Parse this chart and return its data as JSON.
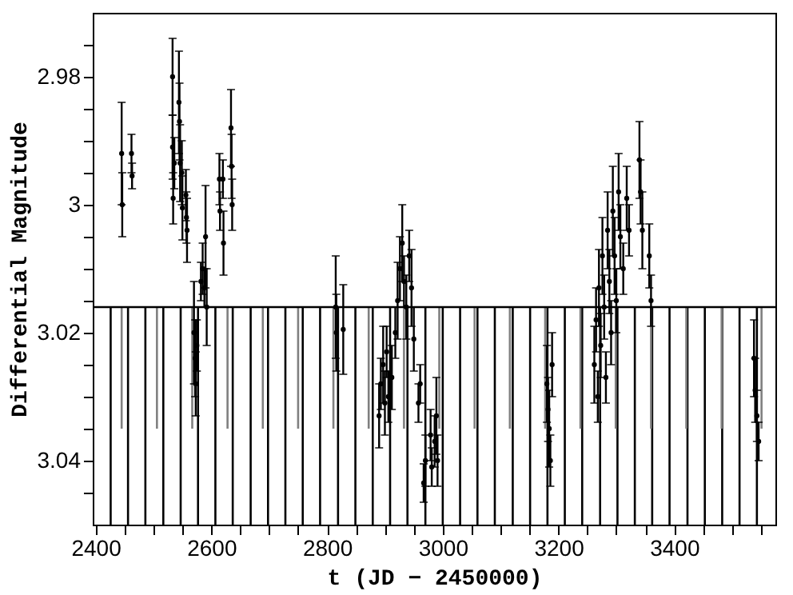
{
  "chart_data": {
    "type": "scatter",
    "xlabel": "t (JD − 2450000)",
    "ylabel": "Differential Magnitude",
    "xlim": [
      2395,
      3575
    ],
    "ylim": [
      3.05,
      2.97
    ],
    "xticks": [
      2400,
      {
        "value": 2450,
        "label": null
      },
      {
        "value": 2500,
        "label": null
      },
      {
        "value": 2550,
        "label": null
      },
      2600,
      {
        "value": 2650,
        "label": null
      },
      {
        "value": 2700,
        "label": null
      },
      {
        "value": 2750,
        "label": null
      },
      2800,
      {
        "value": 2850,
        "label": null
      },
      {
        "value": 2900,
        "label": null
      },
      {
        "value": 2950,
        "label": null
      },
      3000,
      {
        "value": 3050,
        "label": null
      },
      {
        "value": 3100,
        "label": null
      },
      {
        "value": 3150,
        "label": null
      },
      3200,
      {
        "value": 3250,
        "label": null
      },
      {
        "value": 3300,
        "label": null
      },
      {
        "value": 3350,
        "label": null
      },
      3400,
      {
        "value": 3450,
        "label": null
      },
      {
        "value": 3500,
        "label": null
      },
      {
        "value": 3550,
        "label": null
      }
    ],
    "yticks": [
      {
        "value": 2.975,
        "label": null
      },
      2.98,
      {
        "value": 2.985,
        "label": null
      },
      {
        "value": 2.99,
        "label": null
      },
      {
        "value": 2.995,
        "label": null
      },
      3,
      {
        "value": 3.005,
        "label": null
      },
      {
        "value": 3.01,
        "label": null
      },
      {
        "value": 3.015,
        "label": null
      },
      3.02,
      {
        "value": 3.025,
        "label": null
      },
      {
        "value": 3.03,
        "label": null
      },
      {
        "value": 3.035,
        "label": null
      },
      3.04,
      {
        "value": 3.045,
        "label": null
      }
    ],
    "grid": false,
    "marker": "circle",
    "ref_lines": [
      {
        "axis": "y",
        "value": 3.016,
        "color": "#000000"
      }
    ],
    "series": [
      {
        "type": "bar",
        "color": "#000000",
        "x": [
          2426,
          2456,
          2486,
          2517,
          2547,
          2577,
          2607,
          2637,
          2668,
          2698,
          2728,
          2758,
          2788,
          2819,
          2849,
          2879,
          2909,
          2939,
          2970,
          3000,
          3030,
          3060,
          3090,
          3121,
          3151,
          3181,
          3211,
          3241,
          3272,
          3302,
          3332,
          3362,
          3392,
          3423,
          3453,
          3483,
          3513,
          3543
        ],
        "base": [
          3.016,
          3.016,
          3.016,
          3.016,
          3.016,
          3.016,
          3.016,
          3.016,
          3.016,
          3.016,
          3.016,
          3.016,
          3.016,
          3.016,
          3.016,
          3.016,
          3.016,
          3.016,
          3.016,
          3.016,
          3.016,
          3.016,
          3.016,
          3.016,
          3.016,
          3.016,
          3.016,
          3.016,
          3.016,
          3.016,
          3.016,
          3.016,
          3.016,
          3.016,
          3.016,
          3.016,
          3.016,
          3.016
        ],
        "values": [
          0.034,
          0.034,
          0.034,
          0.034,
          0.034,
          0.034,
          0.034,
          0.034,
          0.034,
          0.034,
          0.034,
          0.034,
          0.034,
          0.034,
          0.034,
          0.034,
          0.034,
          0.034,
          0.034,
          0.034,
          0.034,
          0.034,
          0.034,
          0.034,
          0.034,
          0.034,
          0.034,
          0.034,
          0.034,
          0.034,
          0.034,
          0.034,
          0.034,
          0.034,
          0.034,
          0.034,
          0.034,
          0.034
        ]
      },
      {
        "type": "bar",
        "color": "#808080",
        "x": [
          2445,
          2506,
          2567,
          2628,
          2689,
          2750,
          2811,
          2872,
          2933,
          2994,
          3055,
          3116,
          3177,
          3238,
          3299,
          3360,
          3421,
          3482,
          3551
        ],
        "base": [
          3.016,
          3.016,
          3.016,
          3.016,
          3.016,
          3.016,
          3.016,
          3.016,
          3.016,
          3.016,
          3.016,
          3.016,
          3.016,
          3.016,
          3.016,
          3.016,
          3.016,
          3.016,
          3.016
        ],
        "values": [
          0.019,
          0.019,
          0.019,
          0.019,
          0.019,
          0.019,
          0.019,
          0.019,
          0.019,
          0.019,
          0.019,
          0.019,
          0.019,
          0.019,
          0.019,
          0.019,
          0.019,
          0.019,
          0.019
        ]
      },
      {
        "color": "#000000",
        "x": [
          2445,
          2446,
          2462,
          2463,
          2533,
          2533,
          2534,
          2536,
          2544,
          2545,
          2546,
          2549,
          2550,
          2556,
          2557,
          2558,
          2570,
          2572,
          2573,
          2575,
          2582,
          2585,
          2588,
          2590,
          2592,
          2614,
          2615,
          2620,
          2621,
          2634,
          2635,
          2636,
          2815,
          2816,
          2828,
          2890,
          2893,
          2897,
          2900,
          2903,
          2906,
          2912,
          2918,
          2922,
          2926,
          2930,
          2933,
          2937,
          2942,
          2946,
          2950,
          2958,
          2961,
          2967,
          2970,
          2979,
          2981,
          2986,
          2989,
          2991,
          3180,
          3182,
          3184,
          3186,
          3189,
          3262,
          3265,
          3268,
          3270,
          3273,
          3276,
          3279,
          3282,
          3285,
          3288,
          3291,
          3294,
          3297,
          3300,
          3304,
          3307,
          3312,
          3318,
          3322,
          3340,
          3342,
          3345,
          3357,
          3360,
          3538,
          3540,
          3543,
          3546
        ],
        "values": [
          2.992,
          3.0,
          2.992,
          2.9955,
          2.98,
          2.991,
          2.999,
          2.9935,
          2.984,
          2.987,
          2.9935,
          2.995,
          3.0005,
          2.9985,
          3.002,
          3.004,
          3.02,
          3.024,
          3.028,
          3.022,
          3.012,
          3.01,
          3.013,
          3.005,
          3.016,
          2.996,
          3.001,
          2.996,
          3.006,
          2.988,
          2.994,
          3.0,
          3.016,
          3.02,
          3.0195,
          3.033,
          3.028,
          3.025,
          3.031,
          3.023,
          3.03,
          3.027,
          3.02,
          3.015,
          3.01,
          3.006,
          3.012,
          3.016,
          3.008,
          3.013,
          3.021,
          3.031,
          3.028,
          3.0435,
          3.04,
          3.036,
          3.041,
          3.037,
          3.033,
          3.04,
          3.028,
          3.032,
          3.035,
          3.04,
          3.025,
          3.025,
          3.018,
          3.03,
          3.013,
          3.022,
          3.008,
          3.016,
          3.027,
          3.004,
          3.012,
          3.02,
          3.001,
          3.008,
          3.015,
          2.998,
          3.005,
          3.01,
          2.999,
          3.004,
          2.993,
          2.998,
          3.004,
          3.008,
          3.015,
          3.024,
          3.029,
          3.033,
          3.037
        ],
        "errors": [
          0.008,
          0.005,
          0.003,
          0.002,
          0.006,
          0.005,
          0.004,
          0.004,
          0.008,
          0.006,
          0.006,
          0.005,
          0.005,
          0.004,
          0.004,
          0.005,
          0.008,
          0.006,
          0.005,
          0.004,
          0.003,
          0.004,
          0.003,
          0.008,
          0.006,
          0.004,
          0.003,
          0.003,
          0.005,
          0.006,
          0.005,
          0.004,
          0.008,
          0.006,
          0.007,
          0.005,
          0.004,
          0.006,
          0.005,
          0.004,
          0.004,
          0.005,
          0.004,
          0.006,
          0.005,
          0.006,
          0.004,
          0.005,
          0.004,
          0.006,
          0.005,
          0.003,
          0.003,
          0.003,
          0.004,
          0.004,
          0.003,
          0.004,
          0.006,
          0.004,
          0.006,
          0.005,
          0.006,
          0.004,
          0.005,
          0.006,
          0.005,
          0.004,
          0.006,
          0.005,
          0.006,
          0.005,
          0.004,
          0.006,
          0.005,
          0.005,
          0.007,
          0.006,
          0.005,
          0.006,
          0.005,
          0.004,
          0.005,
          0.004,
          0.006,
          0.005,
          0.006,
          0.005,
          0.004,
          0.006,
          0.005,
          0.004,
          0.003
        ]
      }
    ]
  }
}
